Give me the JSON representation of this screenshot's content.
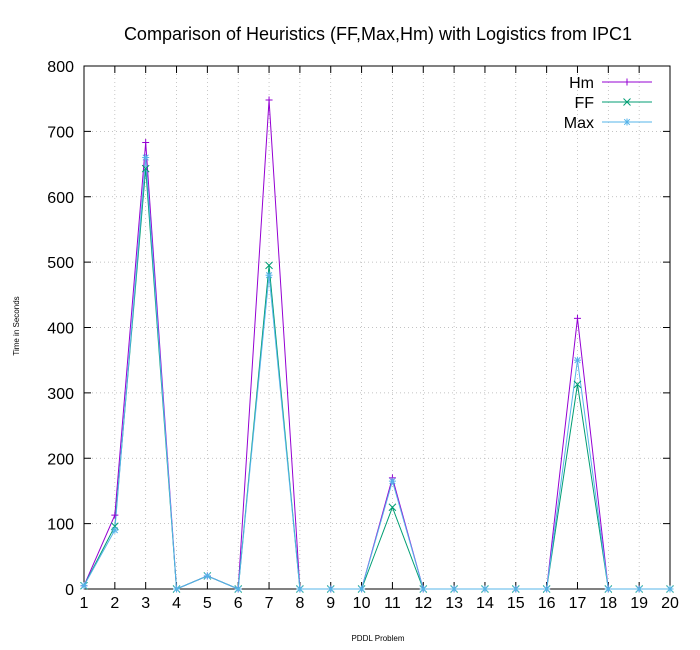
{
  "chart_data": {
    "type": "line",
    "title": "Comparison of Heuristics (FF,Max,Hm) with Logistics from IPC1",
    "xlabel": "PDDL Problem",
    "ylabel": "Time in Seconds",
    "x": [
      1,
      2,
      3,
      4,
      5,
      6,
      7,
      8,
      9,
      10,
      11,
      12,
      13,
      14,
      15,
      16,
      17,
      18,
      19,
      20
    ],
    "xlim": [
      1,
      20
    ],
    "ylim": [
      0,
      800
    ],
    "yticks": [
      0,
      100,
      200,
      300,
      400,
      500,
      600,
      700,
      800
    ],
    "grid": true,
    "legend_position": "top-right",
    "series": [
      {
        "name": "Hm",
        "color": "#9400d3",
        "marker": "plus",
        "values": [
          5,
          113,
          683,
          0,
          20,
          0,
          748,
          0,
          0,
          0,
          170,
          0,
          0,
          0,
          0,
          0,
          414,
          0,
          0,
          0
        ]
      },
      {
        "name": "FF",
        "color": "#009e73",
        "marker": "cross",
        "values": [
          5,
          96,
          643,
          0,
          20,
          0,
          495,
          0,
          0,
          0,
          125,
          0,
          0,
          0,
          0,
          0,
          313,
          0,
          0,
          0
        ]
      },
      {
        "name": "Max",
        "color": "#56b4e9",
        "marker": "asterisk",
        "values": [
          5,
          90,
          660,
          0,
          20,
          0,
          480,
          0,
          0,
          0,
          165,
          0,
          0,
          0,
          0,
          0,
          350,
          0,
          0,
          0
        ]
      }
    ]
  }
}
